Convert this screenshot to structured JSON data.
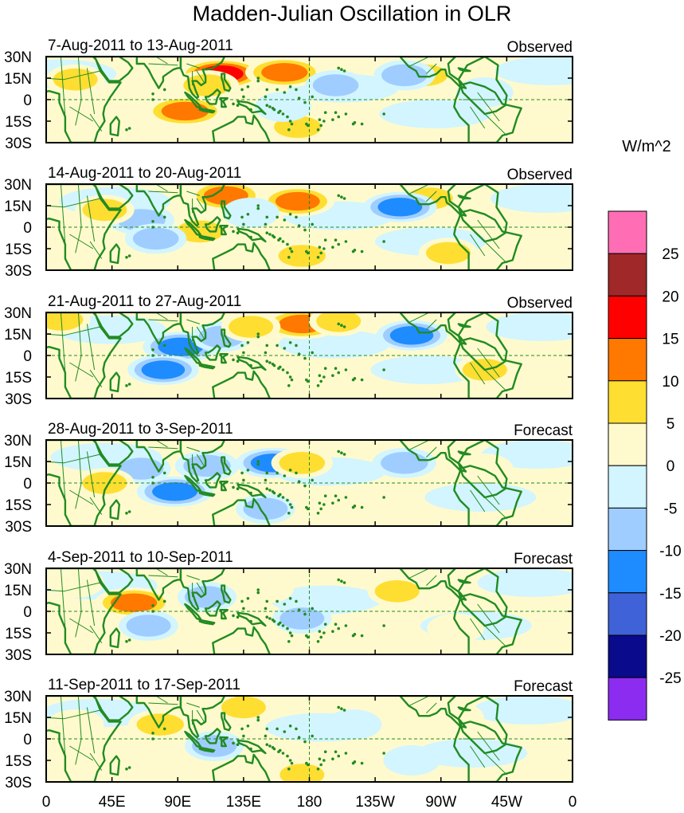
{
  "chart_data": {
    "type": "heatmap",
    "title": "Madden-Julian Oscillation in OLR",
    "units_label": "W/m^2",
    "x_ticks": [
      "0",
      "45E",
      "90E",
      "135E",
      "180",
      "135W",
      "90W",
      "45W",
      "0"
    ],
    "y_ticks": [
      "30N",
      "15N",
      "0",
      "15S",
      "30S"
    ],
    "xlim": [
      0,
      360
    ],
    "ylim": [
      -30,
      30
    ],
    "colorbar": {
      "levels": [
        -25,
        -20,
        -15,
        -10,
        -5,
        0,
        5,
        10,
        15,
        20,
        25
      ],
      "labels": [
        "-25",
        "-20",
        "-15",
        "-10",
        "-5",
        "0",
        "5",
        "10",
        "15",
        "20",
        "25"
      ],
      "colors": [
        "#8c2cf0",
        "#0a0a8c",
        "#3f62d8",
        "#1e8cff",
        "#a0cdff",
        "#d2f5ff",
        "#fffacd",
        "#ffde32",
        "#ff7800",
        "#ff0000",
        "#a02828",
        "#ff6eb4"
      ]
    },
    "land_color": "#228b22",
    "panels": [
      {
        "period": "7-Aug-2011 to 13-Aug-2011",
        "status": "Observed",
        "anomalies": [
          {
            "lon": 120,
            "lat": 18,
            "value": 17
          },
          {
            "lon": 163,
            "lat": 19,
            "value": 14
          },
          {
            "lon": 95,
            "lat": -8,
            "value": 15
          },
          {
            "lon": 110,
            "lat": 10,
            "value": 8
          },
          {
            "lon": 172,
            "lat": -19,
            "value": 8
          },
          {
            "lon": 258,
            "lat": 17,
            "value": 9
          },
          {
            "lon": 20,
            "lat": 14,
            "value": 6
          },
          {
            "lon": 198,
            "lat": 10,
            "value": -7
          },
          {
            "lon": 245,
            "lat": 17,
            "value": -7
          },
          {
            "lon": 162,
            "lat": -5,
            "value": -5
          },
          {
            "lon": 300,
            "lat": 5,
            "value": -5
          }
        ]
      },
      {
        "period": "14-Aug-2011 to 20-Aug-2011",
        "status": "Observed",
        "anomalies": [
          {
            "lon": 123,
            "lat": 22,
            "value": 12
          },
          {
            "lon": 172,
            "lat": 18,
            "value": 12
          },
          {
            "lon": 105,
            "lat": -3,
            "value": 8
          },
          {
            "lon": 175,
            "lat": -20,
            "value": 8
          },
          {
            "lon": 262,
            "lat": 20,
            "value": 8
          },
          {
            "lon": 275,
            "lat": -18,
            "value": 6
          },
          {
            "lon": 65,
            "lat": 5,
            "value": -9
          },
          {
            "lon": 242,
            "lat": 14,
            "value": -12
          },
          {
            "lon": 75,
            "lat": -8,
            "value": -7
          },
          {
            "lon": 140,
            "lat": 10,
            "value": -5
          },
          {
            "lon": 40,
            "lat": 12,
            "value": 6
          }
        ]
      },
      {
        "period": "21-Aug-2011 to 27-Aug-2011",
        "status": "Observed",
        "anomalies": [
          {
            "lon": 175,
            "lat": 22,
            "value": 14
          },
          {
            "lon": 92,
            "lat": 6,
            "value": -13
          },
          {
            "lon": 80,
            "lat": -10,
            "value": -11
          },
          {
            "lon": 250,
            "lat": 14,
            "value": -11
          },
          {
            "lon": 120,
            "lat": 13,
            "value": -7
          },
          {
            "lon": 140,
            "lat": 20,
            "value": 6
          },
          {
            "lon": 10,
            "lat": 25,
            "value": 6
          },
          {
            "lon": 200,
            "lat": 24,
            "value": 6
          },
          {
            "lon": 300,
            "lat": -10,
            "value": 6
          },
          {
            "lon": 150,
            "lat": -5,
            "value": 5
          }
        ]
      },
      {
        "period": "28-Aug-2011 to 3-Sep-2011",
        "status": "Forecast",
        "anomalies": [
          {
            "lon": 88,
            "lat": -6,
            "value": -13
          },
          {
            "lon": 155,
            "lat": 14,
            "value": -12
          },
          {
            "lon": 110,
            "lat": 12,
            "value": -8
          },
          {
            "lon": 245,
            "lat": 14,
            "value": -8
          },
          {
            "lon": 65,
            "lat": 10,
            "value": -6
          },
          {
            "lon": 150,
            "lat": -18,
            "value": -6
          },
          {
            "lon": 175,
            "lat": 14,
            "value": 7
          },
          {
            "lon": 40,
            "lat": 0,
            "value": 6
          },
          {
            "lon": 200,
            "lat": -12,
            "value": 5
          },
          {
            "lon": 300,
            "lat": 10,
            "value": 5
          }
        ]
      },
      {
        "period": "4-Sep-2011 to 10-Sep-2011",
        "status": "Forecast",
        "anomalies": [
          {
            "lon": 60,
            "lat": 6,
            "value": 14
          },
          {
            "lon": 110,
            "lat": 10,
            "value": -6
          },
          {
            "lon": 70,
            "lat": -10,
            "value": -6
          },
          {
            "lon": 175,
            "lat": -5,
            "value": -6
          },
          {
            "lon": 240,
            "lat": 14,
            "value": 6
          },
          {
            "lon": 150,
            "lat": 16,
            "value": 5
          },
          {
            "lon": 280,
            "lat": -12,
            "value": 5
          },
          {
            "lon": 20,
            "lat": 20,
            "value": 5
          }
        ]
      },
      {
        "period": "11-Sep-2011 to 17-Sep-2011",
        "status": "Forecast",
        "anomalies": [
          {
            "lon": 78,
            "lat": 10,
            "value": 8
          },
          {
            "lon": 135,
            "lat": 22,
            "value": 6
          },
          {
            "lon": 175,
            "lat": -25,
            "value": 6
          },
          {
            "lon": 115,
            "lat": -5,
            "value": -6
          },
          {
            "lon": 210,
            "lat": 10,
            "value": -5
          },
          {
            "lon": 280,
            "lat": 15,
            "value": 5
          },
          {
            "lon": 20,
            "lat": 10,
            "value": 5
          },
          {
            "lon": 250,
            "lat": -15,
            "value": -5
          }
        ]
      }
    ]
  }
}
